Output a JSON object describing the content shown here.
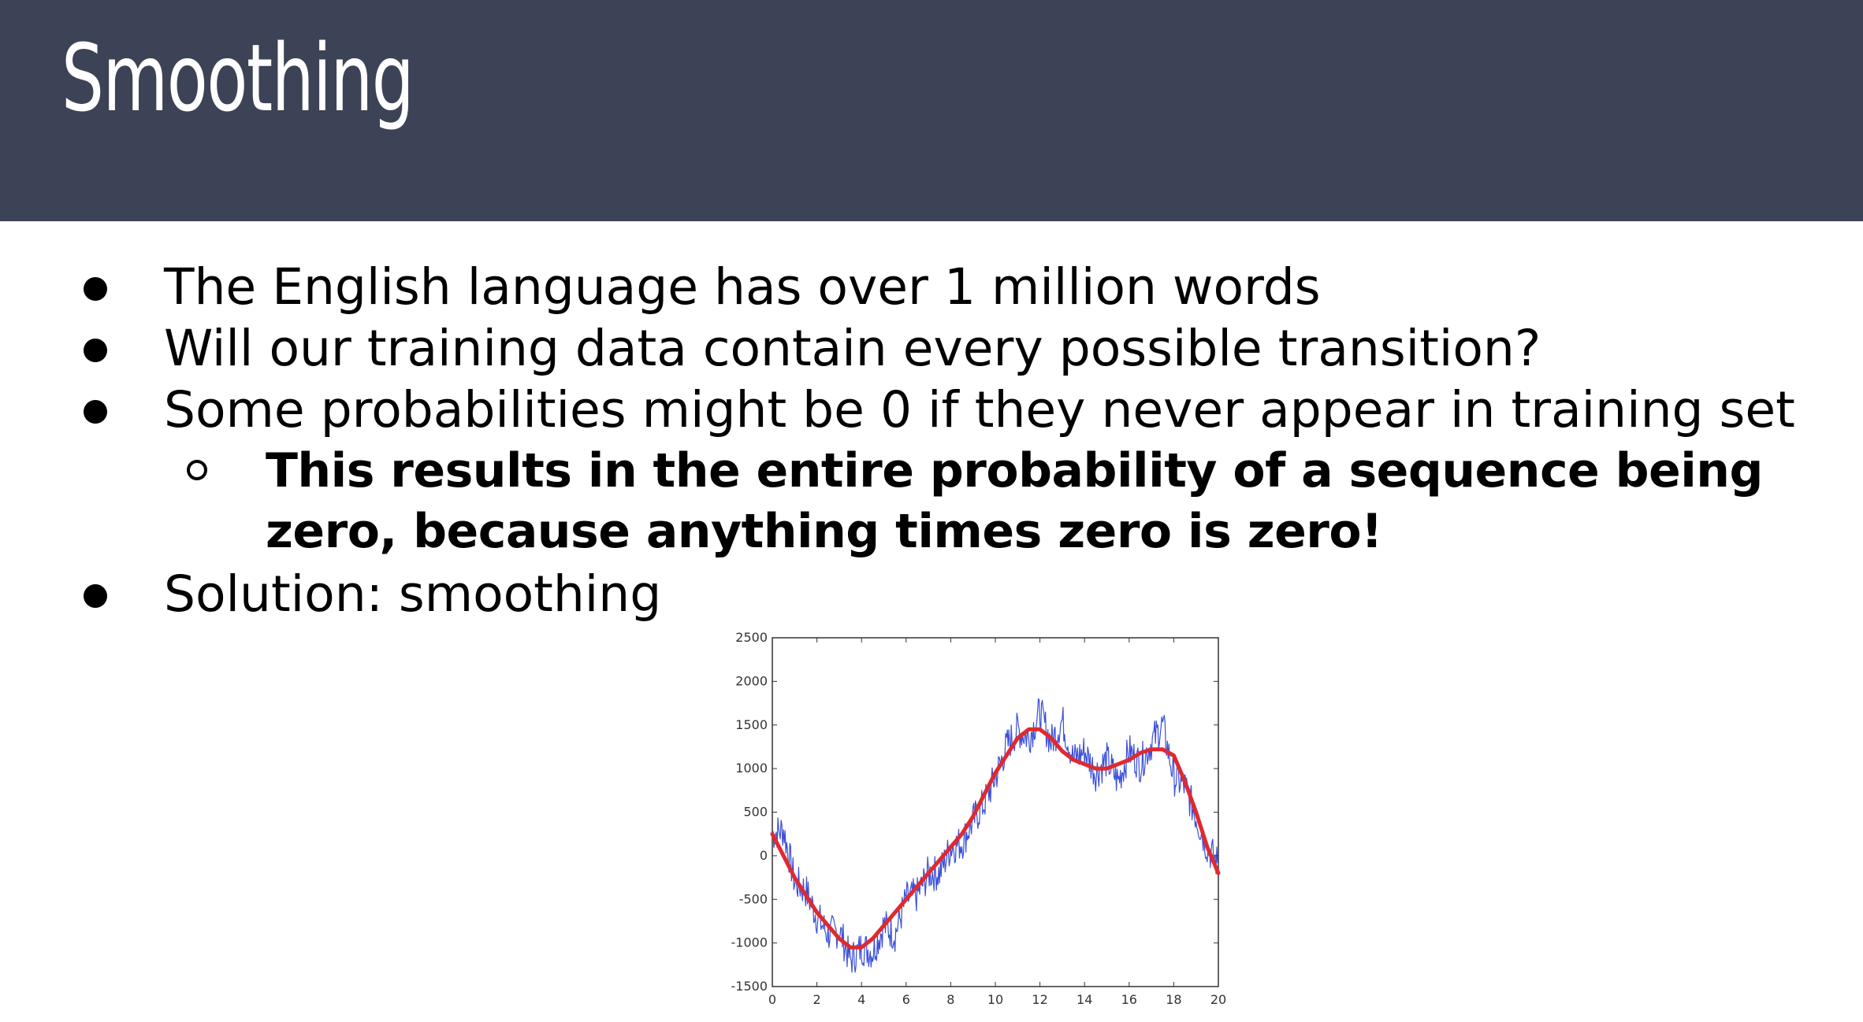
{
  "slide": {
    "title": "Smoothing",
    "header_color": "#3c4356"
  },
  "bullets": [
    {
      "level": 1,
      "text": "The English language has over 1 million words"
    },
    {
      "level": 1,
      "text": "Will our training data contain every possible transition?"
    },
    {
      "level": 1,
      "text": "Some probabilities might be 0 if they never appear in training set"
    },
    {
      "level": 2,
      "bold": true,
      "text": "This results in the entire probability of a sequence being zero, because anything times zero is zero!"
    },
    {
      "level": 1,
      "text": "Solution: smoothing"
    }
  ],
  "chart_data": {
    "type": "line",
    "xlim": [
      0,
      20
    ],
    "ylim": [
      -1500,
      2500
    ],
    "x_ticks": [
      "0",
      "2",
      "4",
      "6",
      "8",
      "10",
      "12",
      "14",
      "16",
      "18",
      "20"
    ],
    "y_ticks": [
      "2500",
      "2000",
      "1500",
      "1000",
      "500",
      "0",
      "-500",
      "-1000",
      "-1500"
    ],
    "grid": false,
    "series": [
      {
        "color": "#3b4fd8",
        "style": "noisy",
        "x": [
          0,
          0.5,
          1,
          1.5,
          2,
          2.5,
          3,
          3.5,
          4,
          4.5,
          5,
          5.5,
          6,
          6.5,
          7,
          7.5,
          8,
          8.5,
          9,
          9.5,
          10,
          10.5,
          11,
          11.5,
          12,
          12.5,
          13,
          13.5,
          14,
          14.5,
          15,
          15.5,
          16,
          16.5,
          17,
          17.5,
          18,
          18.5,
          19,
          19.5,
          20
        ],
        "y": [
          250,
          300,
          -300,
          -400,
          -700,
          -900,
          -850,
          -1200,
          -1050,
          -1100,
          -800,
          -900,
          -500,
          -450,
          -200,
          -200,
          100,
          150,
          400,
          600,
          900,
          1250,
          1450,
          1350,
          1650,
          1300,
          1550,
          1100,
          1200,
          950,
          1100,
          850,
          1200,
          1050,
          1300,
          1500,
          900,
          800,
          450,
          100,
          -100
        ]
      },
      {
        "color": "#e0292f",
        "style": "smooth",
        "x": [
          0,
          0.5,
          1,
          1.5,
          2,
          2.5,
          3,
          3.5,
          4,
          4.5,
          5,
          5.5,
          6,
          6.5,
          7,
          7.5,
          8,
          8.5,
          9,
          9.5,
          10,
          10.5,
          11,
          11.5,
          12,
          12.5,
          13,
          13.5,
          14,
          14.5,
          15,
          15.5,
          16,
          16.5,
          17,
          17.5,
          18,
          18.5,
          19,
          19.5,
          20
        ],
        "y": [
          250,
          0,
          -250,
          -450,
          -650,
          -800,
          -950,
          -1050,
          -1050,
          -950,
          -800,
          -650,
          -500,
          -350,
          -200,
          -50,
          100,
          250,
          450,
          700,
          950,
          1150,
          1350,
          1450,
          1450,
          1350,
          1200,
          1100,
          1050,
          1000,
          1000,
          1050,
          1100,
          1180,
          1220,
          1220,
          1150,
          850,
          500,
          100,
          -200
        ]
      }
    ]
  }
}
